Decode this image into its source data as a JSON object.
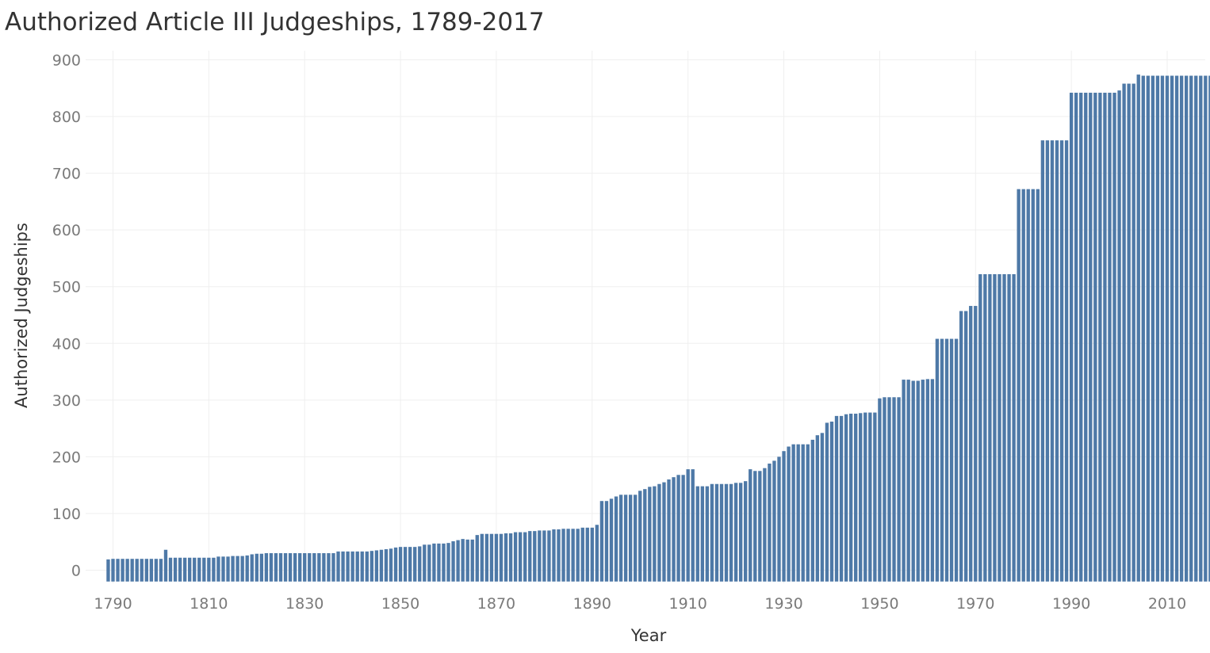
{
  "chart_data": {
    "type": "bar",
    "title": "Authorized Article III Judgeships, 1789-2017",
    "xlabel": "Year",
    "ylabel": "Authorized Judgeships",
    "ylim": [
      -20,
      910
    ],
    "yticks": [
      0,
      100,
      200,
      300,
      400,
      500,
      600,
      700,
      800,
      900
    ],
    "xticks": [
      1790,
      1810,
      1830,
      1850,
      1870,
      1890,
      1910,
      1930,
      1950,
      1970,
      1990,
      2010
    ],
    "grid": true,
    "bar_color": "#4e79a7",
    "x_start": 1789,
    "values": [
      19,
      20,
      20,
      20,
      20,
      20,
      20,
      20,
      20,
      20,
      20,
      20,
      36,
      22,
      22,
      22,
      22,
      22,
      22,
      22,
      22,
      22,
      22,
      24,
      24,
      24,
      25,
      25,
      25,
      26,
      28,
      29,
      29,
      30,
      30,
      30,
      30,
      30,
      30,
      30,
      30,
      30,
      30,
      30,
      30,
      30,
      30,
      30,
      33,
      33,
      33,
      33,
      33,
      33,
      33,
      34,
      35,
      36,
      37,
      38,
      40,
      41,
      41,
      41,
      41,
      42,
      45,
      45,
      47,
      47,
      47,
      48,
      51,
      53,
      55,
      54,
      54,
      62,
      64,
      64,
      64,
      64,
      64,
      65,
      65,
      67,
      67,
      67,
      69,
      69,
      70,
      70,
      70,
      72,
      72,
      73,
      73,
      73,
      73,
      75,
      75,
      75,
      80,
      122,
      122,
      126,
      130,
      133,
      133,
      133,
      133,
      140,
      143,
      147,
      148,
      152,
      155,
      160,
      164,
      168,
      168,
      178,
      178,
      148,
      148,
      148,
      152,
      152,
      152,
      152,
      152,
      154,
      154,
      157,
      178,
      175,
      175,
      180,
      188,
      193,
      200,
      210,
      218,
      222,
      222,
      222,
      222,
      230,
      238,
      242,
      260,
      262,
      272,
      272,
      275,
      276,
      276,
      277,
      278,
      278,
      278,
      303,
      305,
      305,
      305,
      305,
      336,
      336,
      334,
      334,
      336,
      337,
      337,
      408,
      408,
      408,
      408,
      408,
      457,
      457,
      466,
      466,
      522,
      522,
      522,
      522,
      522,
      522,
      522,
      522,
      672,
      672,
      672,
      672,
      672,
      758,
      758,
      758,
      758,
      758,
      758,
      842,
      842,
      842,
      842,
      842,
      842,
      842,
      842,
      842,
      842,
      846,
      858,
      858,
      858,
      874,
      872,
      872,
      872,
      872,
      872,
      872,
      872,
      872,
      872,
      872,
      872,
      872,
      872,
      872,
      872
    ]
  }
}
